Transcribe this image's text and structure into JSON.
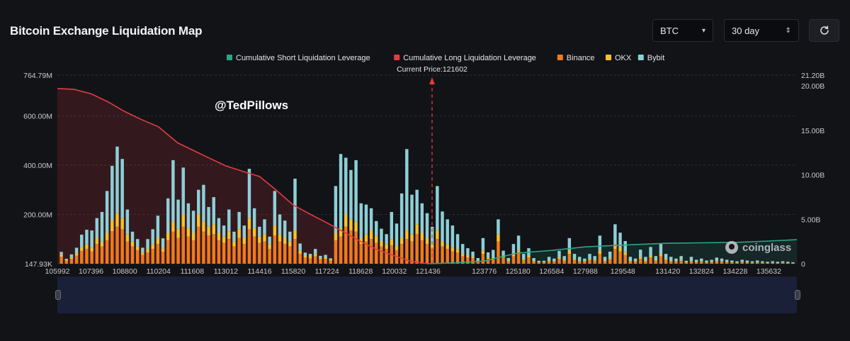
{
  "header": {
    "title": "Bitcoin Exchange Liquidation Map",
    "coin_select": "BTC",
    "period_select": "30 day"
  },
  "watermark": "@TedPillows",
  "brand": "coinglass",
  "colors": {
    "short": "#2aa58a",
    "long": "#e23c42",
    "binance": "#f07a1c",
    "okx": "#f5c22b",
    "bybit": "#8dcfd7",
    "current_price_line": "#e53935"
  },
  "chart_data": {
    "type": "bar",
    "legend": [
      {
        "name": "Cumulative Short Liquidation Leverage",
        "color": "#2aa58a"
      },
      {
        "name": "Cumulative Long Liquidation Leverage",
        "color": "#e23c42"
      },
      {
        "name": "Binance",
        "color": "#f07a1c"
      },
      {
        "name": "OKX",
        "color": "#f5c22b"
      },
      {
        "name": "Bybit",
        "color": "#8dcfd7"
      }
    ],
    "legend_position": "top-center",
    "current_price_label": "Current Price:121602",
    "current_price": 121602,
    "x_ticks": [
      105992,
      107396,
      108800,
      110204,
      111608,
      113012,
      114416,
      115820,
      117224,
      118628,
      120032,
      121436,
      123776,
      125180,
      126584,
      127988,
      129548,
      131420,
      132824,
      134228,
      135632
    ],
    "xlim": [
      105992,
      136800
    ],
    "y_left_ticks": [
      "147.93K",
      "200.00M",
      "400.00M",
      "600.00M",
      "764.79M"
    ],
    "y_left_ticks_values": [
      0.14793,
      200,
      400,
      600,
      764.79
    ],
    "ylim_left": [
      0,
      764.79
    ],
    "y_right_ticks": [
      "0",
      "5.00B",
      "10.00B",
      "15.00B",
      "20.00B",
      "21.20B"
    ],
    "y_right_ticks_values": [
      0,
      5,
      10,
      15,
      20,
      21.2
    ],
    "ylim_right": [
      0,
      21.2
    ],
    "long_cumulative": {
      "x": [
        105992,
        106700,
        107396,
        108100,
        108800,
        109500,
        110204,
        110600,
        111000,
        111608,
        112300,
        113012,
        113700,
        114416,
        115100,
        115820,
        116500,
        117224,
        117900,
        118628,
        119300,
        120032,
        120700,
        121436
      ],
      "y": [
        19.7,
        19.6,
        19.1,
        18.2,
        17.1,
        16.2,
        15.4,
        14.5,
        13.6,
        12.8,
        11.9,
        11.0,
        10.4,
        9.8,
        8.3,
        6.6,
        5.6,
        4.6,
        3.6,
        2.5,
        1.6,
        0.9,
        0.3,
        0.0
      ]
    },
    "short_cumulative": {
      "x": [
        121436,
        122600,
        123776,
        124500,
        125180,
        126584,
        127988,
        129548,
        131420,
        132824,
        134228,
        135632,
        136800
      ],
      "y": [
        0.0,
        0.1,
        0.3,
        0.8,
        1.2,
        1.5,
        1.9,
        2.1,
        2.3,
        2.35,
        2.4,
        2.55,
        2.7
      ]
    },
    "series": [
      {
        "name": "Binance",
        "values": [
          28,
          12,
          20,
          33,
          52,
          60,
          50,
          80,
          70,
          95,
          132,
          150,
          140,
          90,
          70,
          55,
          35,
          45,
          60,
          80,
          48,
          95,
          130,
          105,
          150,
          110,
          95,
          150,
          130,
          115,
          120,
          95,
          85,
          100,
          70,
          105,
          80,
          140,
          110,
          85,
          90,
          60,
          115,
          90,
          80,
          70,
          100,
          40,
          25,
          22,
          30,
          18,
          20,
          12,
          95,
          110,
          150,
          135,
          130,
          80,
          90,
          100,
          85,
          70,
          60,
          75,
          55,
          80,
          100,
          90,
          120,
          95,
          80,
          60,
          100,
          70,
          60,
          50,
          45,
          30,
          25,
          22,
          10,
          40,
          20,
          20,
          90,
          25,
          10,
          30,
          40,
          15,
          25,
          10,
          5,
          5,
          10,
          8,
          20,
          12,
          40,
          15,
          10,
          8,
          15,
          12,
          40,
          10,
          18,
          60,
          50,
          35,
          10,
          8,
          20,
          10,
          25,
          12,
          30,
          15,
          10,
          8,
          12,
          5,
          10,
          6,
          8,
          5,
          6,
          10,
          8,
          6,
          5,
          4,
          6,
          5,
          4,
          5,
          4,
          3,
          4,
          3,
          4,
          3,
          2
        ]
      },
      {
        "name": "OKX",
        "values": [
          10,
          4,
          6,
          10,
          16,
          18,
          15,
          25,
          20,
          30,
          45,
          55,
          45,
          30,
          20,
          15,
          10,
          15,
          20,
          25,
          15,
          30,
          40,
          35,
          50,
          35,
          30,
          50,
          40,
          35,
          40,
          30,
          25,
          30,
          20,
          35,
          25,
          45,
          35,
          25,
          30,
          20,
          40,
          30,
          25,
          20,
          35,
          12,
          8,
          8,
          10,
          6,
          6,
          4,
          30,
          35,
          50,
          45,
          40,
          25,
          30,
          35,
          28,
          22,
          20,
          25,
          18,
          25,
          35,
          30,
          40,
          30,
          25,
          20,
          35,
          22,
          20,
          15,
          15,
          10,
          8,
          7,
          3,
          14,
          6,
          6,
          30,
          8,
          3,
          10,
          14,
          5,
          8,
          3,
          2,
          2,
          3,
          3,
          7,
          4,
          14,
          5,
          3,
          3,
          5,
          4,
          14,
          3,
          6,
          20,
          16,
          12,
          3,
          3,
          7,
          3,
          8,
          4,
          10,
          5,
          3,
          3,
          4,
          2,
          3,
          2,
          3,
          2,
          2,
          3,
          3,
          2,
          2,
          1,
          2,
          2,
          1,
          2,
          1,
          1,
          1,
          1,
          1,
          1,
          1
        ]
      },
      {
        "name": "Bybit",
        "values": [
          10,
          4,
          12,
          22,
          50,
          60,
          70,
          80,
          120,
          170,
          220,
          270,
          240,
          100,
          40,
          30,
          20,
          40,
          60,
          90,
          40,
          140,
          250,
          120,
          190,
          100,
          90,
          100,
          150,
          80,
          110,
          60,
          45,
          90,
          40,
          70,
          50,
          200,
          80,
          40,
          60,
          30,
          140,
          80,
          70,
          40,
          210,
          30,
          12,
          10,
          20,
          8,
          10,
          6,
          190,
          300,
          230,
          200,
          250,
          140,
          120,
          90,
          60,
          50,
          40,
          110,
          90,
          180,
          330,
          160,
          140,
          120,
          100,
          70,
          180,
          120,
          100,
          90,
          60,
          40,
          30,
          20,
          10,
          50,
          20,
          30,
          60,
          20,
          10,
          40,
          60,
          20,
          30,
          10,
          5,
          5,
          15,
          10,
          25,
          15,
          50,
          20,
          15,
          10,
          20,
          15,
          60,
          15,
          25,
          80,
          60,
          45,
          15,
          10,
          30,
          15,
          35,
          15,
          40,
          20,
          15,
          10,
          15,
          5,
          15,
          8,
          10,
          6,
          8,
          12,
          10,
          8,
          6,
          5,
          8,
          6,
          5,
          6,
          5,
          4,
          5,
          4,
          5,
          4,
          3
        ]
      }
    ]
  }
}
